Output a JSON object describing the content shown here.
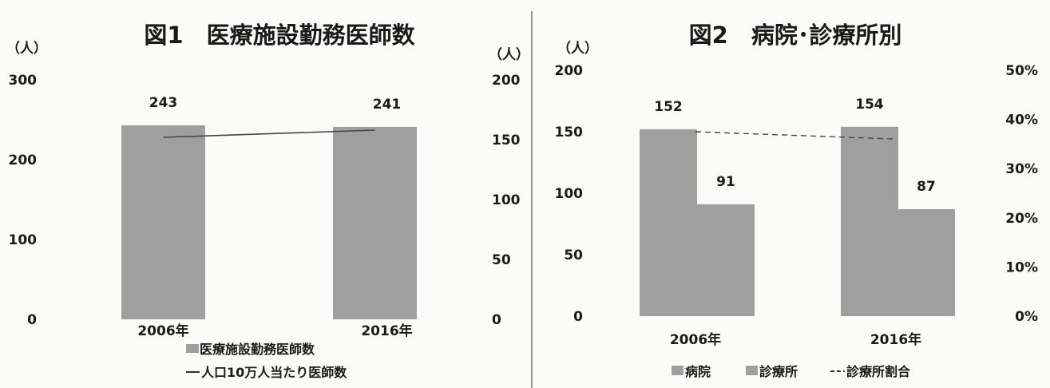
{
  "fig1": {
    "title": "図1　医療施設勤務医師数",
    "left_unit": "（人）",
    "right_unit": "（人）",
    "left_ticks": [
      "300",
      "200",
      "100",
      "0"
    ],
    "right_ticks": [
      "200",
      "150",
      "100",
      "50",
      "0"
    ],
    "legend_bar": "医療施設勤務医師数",
    "legend_line": "人口10万人当たり医師数"
  },
  "fig2": {
    "title": "図2　病院･診療所別",
    "left_unit": "（人）",
    "left_ticks": [
      "200",
      "150",
      "100",
      "50",
      "0"
    ],
    "right_ticks": [
      "50%",
      "40%",
      "30%",
      "20%",
      "10%",
      "0%"
    ],
    "legend_hospital": "病院",
    "legend_clinic": "診療所",
    "legend_ratio": "診療所割合"
  },
  "colors": {
    "bar": "#9f9f9f",
    "line": "#444444",
    "background": "#fbfbf9"
  },
  "chart_data": [
    {
      "type": "bar",
      "title": "図1　医療施設勤務医師数",
      "categories": [
        "2006年",
        "2016年"
      ],
      "series": [
        {
          "name": "医療施設勤務医師数",
          "values": [
            243,
            241
          ],
          "axis": "left"
        },
        {
          "name": "人口10万人当たり医師数",
          "type": "line",
          "values": [
            152,
            158
          ],
          "axis": "right"
        }
      ],
      "data_labels": [
        "243",
        "241"
      ],
      "ylim_left": [
        0,
        300
      ],
      "ylim_right": [
        0,
        200
      ],
      "ylabel_left": "（人）",
      "ylabel_right": "（人）",
      "legend": "bottom"
    },
    {
      "type": "bar",
      "title": "図2　病院･診療所別",
      "categories": [
        "2006年",
        "2016年"
      ],
      "series": [
        {
          "name": "病院",
          "values": [
            152,
            154
          ],
          "axis": "left"
        },
        {
          "name": "診療所",
          "values": [
            91,
            87
          ],
          "axis": "left"
        },
        {
          "name": "診療所割合",
          "type": "line",
          "values": [
            0.375,
            0.36
          ],
          "axis": "right"
        }
      ],
      "data_labels": {
        "病院": [
          "152",
          "154"
        ],
        "診療所": [
          "91",
          "87"
        ]
      },
      "ylim_left": [
        0,
        200
      ],
      "ylim_right": [
        0,
        0.5
      ],
      "ylabel_left": "（人）",
      "legend": "bottom"
    }
  ]
}
